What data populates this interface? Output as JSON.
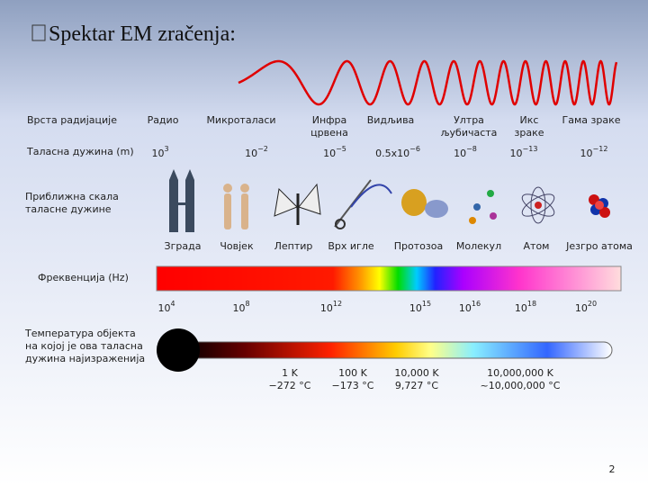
{
  "title": "Spektar EM zračenja:",
  "labels": {
    "type": "Врста радијације",
    "wavelength": "Таласна дужина (m)",
    "scale": [
      "Приближна скала",
      "таласне дужине"
    ],
    "frequency": "Фреквенција (Hz)",
    "temperature": [
      "Температура објекта",
      "на којој је ова таласна",
      "дужина најизраженија"
    ]
  },
  "types": [
    [
      "Радио"
    ],
    [
      "Микроталаси"
    ],
    [
      "Инфра",
      "црвена"
    ],
    [
      "Видљива"
    ],
    [
      "Ултра",
      "љубичаста"
    ],
    [
      "Икс",
      "зраке"
    ],
    [
      "Гама зраке"
    ]
  ],
  "wavelengths": [
    {
      "base": "10",
      "exp": "3"
    },
    {
      "base": "10",
      "exp": "−2"
    },
    {
      "base": "10",
      "exp": "−5"
    },
    {
      "base": "0.5x10",
      "exp": "−6"
    },
    {
      "base": "10",
      "exp": "−8"
    },
    {
      "base": "10",
      "exp": "−13"
    },
    {
      "base": "10",
      "exp": "−12"
    }
  ],
  "objects": [
    "Зграда",
    "Човјек",
    "Лептир",
    "Врх игле",
    "Протозоа",
    "Молекул",
    "Атом",
    "Језгро атома"
  ],
  "frequencies": [
    {
      "base": "10",
      "exp": "4"
    },
    {
      "base": "10",
      "exp": "8"
    },
    {
      "base": "10",
      "exp": "12"
    },
    {
      "base": "10",
      "exp": "15"
    },
    {
      "base": "10",
      "exp": "16"
    },
    {
      "base": "10",
      "exp": "18"
    },
    {
      "base": "10",
      "exp": "20"
    }
  ],
  "temperatures": [
    {
      "kelvin": "1 K",
      "celsius": "−272 °C"
    },
    {
      "kelvin": "100 K",
      "celsius": "−173 °C"
    },
    {
      "kelvin": "10,000 K",
      "celsius": "9,727 °C"
    },
    {
      "kelvin": "10,000,000 K",
      "celsius": "~10,000,000 °C"
    }
  ],
  "page_number": "2"
}
